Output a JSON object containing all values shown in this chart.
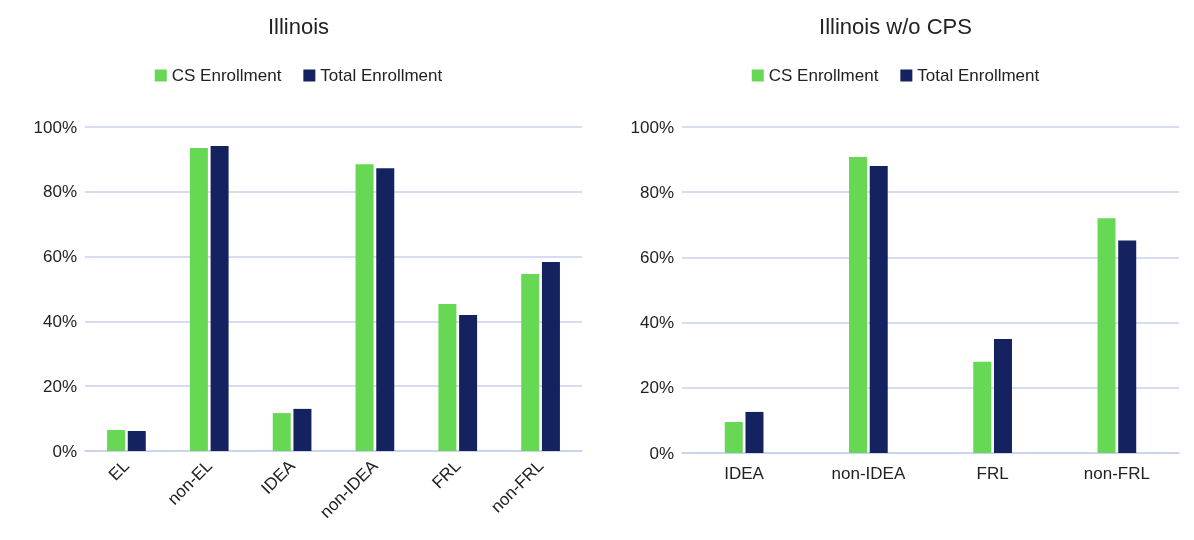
{
  "chart_data": [
    {
      "type": "bar",
      "title": "Illinois",
      "categories": [
        "EL",
        "non-EL",
        "IDEA",
        "non-IDEA",
        "FRL",
        "non-FRL"
      ],
      "series": [
        {
          "name": "CS Enrollment",
          "color": "#66d854",
          "values": [
            6.5,
            93.5,
            11.7,
            88.5,
            45.4,
            54.6
          ]
        },
        {
          "name": "Total Enrollment",
          "color": "#14235f",
          "values": [
            6.2,
            94.1,
            13,
            87.3,
            42,
            58.3
          ]
        }
      ],
      "ylim": [
        0,
        100
      ],
      "yticks": [
        {
          "value": 0,
          "label": "0%"
        },
        {
          "value": 20,
          "label": "20%"
        },
        {
          "value": 40,
          "label": "40%"
        },
        {
          "value": 60,
          "label": "60%"
        },
        {
          "value": 80,
          "label": "80%"
        },
        {
          "value": 100,
          "label": "100%"
        }
      ],
      "grid": "y",
      "legend": "top"
    },
    {
      "type": "bar",
      "title": "Illinois w/o CPS",
      "categories": [
        "IDEA",
        "non-IDEA",
        "FRL",
        "non-FRL"
      ],
      "series": [
        {
          "name": "CS Enrollment",
          "color": "#66d854",
          "values": [
            9.5,
            90.8,
            28,
            72
          ]
        },
        {
          "name": "Total Enrollment",
          "color": "#14235f",
          "values": [
            12.6,
            88,
            35,
            65.2
          ]
        }
      ],
      "ylim": [
        0,
        100
      ],
      "yticks": [
        {
          "value": 0,
          "label": "0%"
        },
        {
          "value": 20,
          "label": "20%"
        },
        {
          "value": 40,
          "label": "40%"
        },
        {
          "value": 60,
          "label": "60%"
        },
        {
          "value": 80,
          "label": "80%"
        },
        {
          "value": 100,
          "label": "100%"
        }
      ],
      "grid": "y",
      "legend": "top"
    }
  ]
}
